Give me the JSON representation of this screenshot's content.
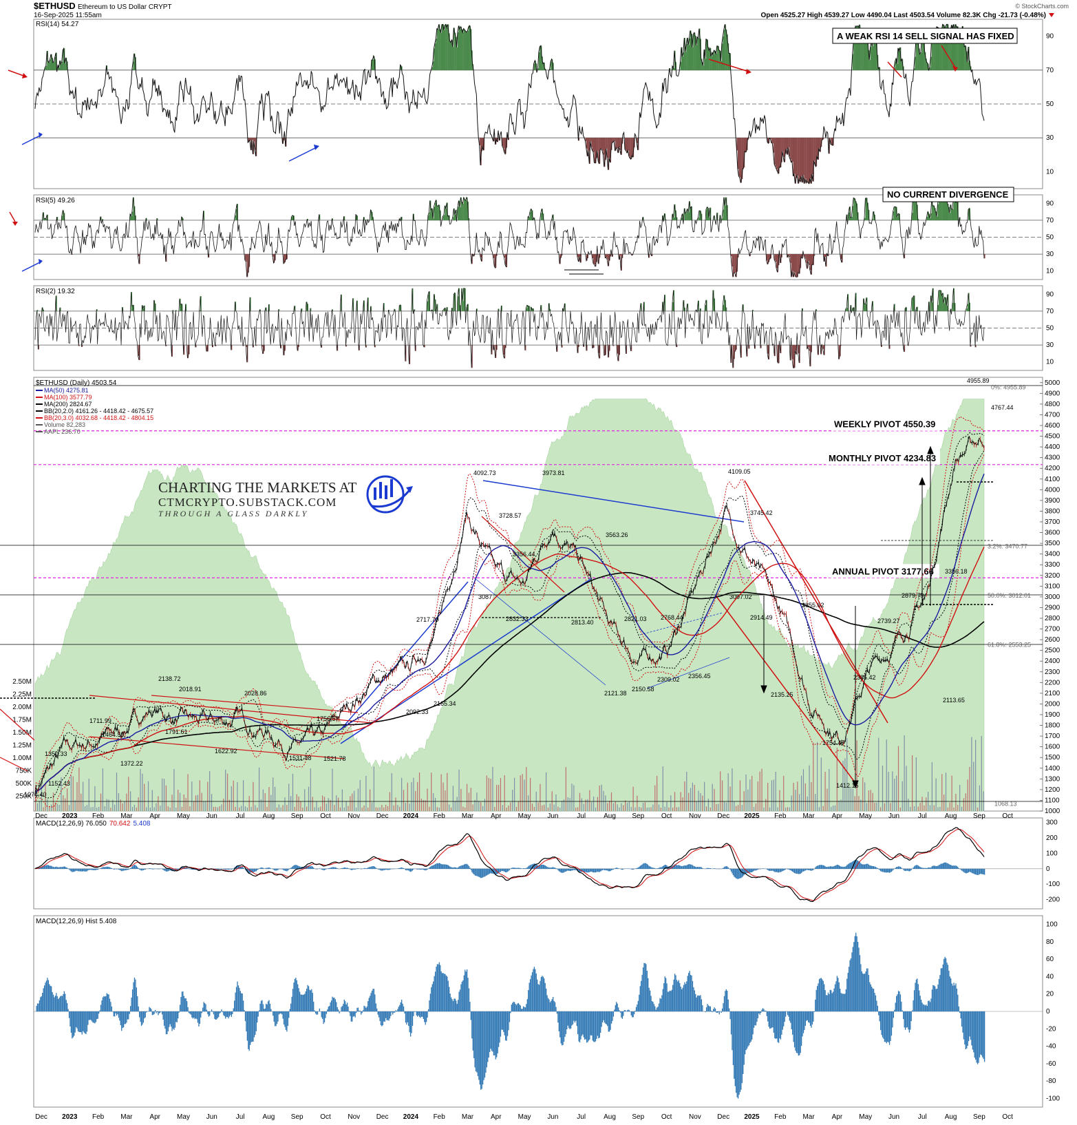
{
  "header": {
    "symbol": "$ETHUSD",
    "description": "Ethereum to US Dollar  CRYPT",
    "datetime": "16-Sep-2025 11:55am",
    "quote": "Open 4525.27  High 4539.27  Low 4490.04  Last 4503.54  Volume 82.3K  Chg -21.73 (-0.48%)",
    "credit": "© StockCharts.com"
  },
  "panels": {
    "rsi14": {
      "label": "RSI(14) 54.27",
      "annotation": "A WEAK RSI 14 SELL SIGNAL HAS FIXED",
      "levels": [
        90,
        70,
        50,
        30,
        10
      ]
    },
    "rsi5": {
      "label": "RSI(5) 49.26",
      "annotation": "NO CURRENT DIVERGENCE",
      "levels": [
        90,
        70,
        50,
        30,
        10
      ]
    },
    "rsi2": {
      "label": "RSI(2) 19.32",
      "levels": [
        90,
        70,
        50,
        30,
        10
      ]
    },
    "price": {
      "label": "$ETHUSD (Daily) 4503.54",
      "legend": [
        {
          "text": "MA(50) 4275.81",
          "color": "#1a1aa0"
        },
        {
          "text": "MA(100) 3577.79",
          "color": "#d01010"
        },
        {
          "text": "MA(200) 2824.67",
          "color": "#000000"
        },
        {
          "text": "BB(20,2.0) 4161.26 - 4418.42 - 4675.57",
          "color": "#000000"
        },
        {
          "text": "BB(20,3.0) 4032.68 - 4418.42 - 4804.15",
          "color": "#d01010"
        },
        {
          "text": "Volume 82,283",
          "color": "#555555"
        },
        {
          "text": "AAPL 236.70",
          "color": "#555555"
        }
      ],
      "axis_right": [
        "5000",
        "4900",
        "4800",
        "4700",
        "4600",
        "4500",
        "4400",
        "4300",
        "4200",
        "4100",
        "4000",
        "3900",
        "3800",
        "3700",
        "3600",
        "3500",
        "3400",
        "3300",
        "3200",
        "3100",
        "3000",
        "2900",
        "2800",
        "2700",
        "2600",
        "2500",
        "2400",
        "2300",
        "2200",
        "2100",
        "2000",
        "1900",
        "1800",
        "1700",
        "1600",
        "1500",
        "1400",
        "1300",
        "1200",
        "1100",
        "1000"
      ],
      "axis_left_volume": [
        "2.50M",
        "2.25M",
        "2.00M",
        "1.75M",
        "1.50M",
        "1.25M",
        "1.00M",
        "750K",
        "500K",
        "250K"
      ],
      "pivots": [
        {
          "label": "WEEKLY PIVOT 4550.39",
          "value": 4550.39
        },
        {
          "label": "MONTHLY PIVOT 4234.83",
          "value": 4234.83
        },
        {
          "label": "ANNUAL PIVOT 3177.66",
          "value": 3177.66
        }
      ],
      "fib_labels": [
        "3.2%: 3470.77",
        "50.0%: 3012.01",
        "61.8%: 2553.25",
        "0%: 4955.89",
        "1068.13"
      ],
      "peak_labels": [
        "4955.89",
        "4767.44",
        "4109.05",
        "3745.42",
        "4092.73",
        "3973.81",
        "3728.57",
        "3563.26",
        "3356.44",
        "3097.02",
        "3087",
        "2914.49",
        "2855.62",
        "2879.79",
        "2739.27",
        "2832.33",
        "2813.40",
        "2821.03",
        "2768.44",
        "2717.70",
        "2385.42",
        "2356.45",
        "2309.02",
        "2150.58",
        "2121.38",
        "2113.65",
        "2135.25",
        "2092.33",
        "2165.34",
        "2138.72",
        "2028.86",
        "2018.91",
        "1791.61",
        "1756.57",
        "1754.47",
        "1711.99",
        "1622.92",
        "1531.48",
        "1521.78",
        "1464.59",
        "1412.16",
        "1372.22",
        "1350.33",
        "1152.43",
        "1074.40",
        "3356.18"
      ],
      "watermark": {
        "line1": "CHARTING THE MARKETS AT",
        "line2": "CTMCRYPTO.SUBSTACK.COM",
        "line3": "THROUGH A GLASS DARKLY"
      }
    },
    "macd": {
      "label_prefix": "MACD(12,26,9) ",
      "v1": "76.050",
      "v2": "70.642",
      "v3": "5.408",
      "levels": [
        300,
        200,
        100,
        0,
        -100,
        -200
      ]
    },
    "hist": {
      "label": "MACD(12,26,9) Hist 5.408",
      "levels": [
        100,
        80,
        60,
        40,
        20,
        0,
        -20,
        -40,
        -60,
        -80,
        -100
      ]
    }
  },
  "x_axis": [
    "Dec",
    "2023",
    "Feb",
    "Mar",
    "Apr",
    "May",
    "Jun",
    "Jul",
    "Aug",
    "Sep",
    "Oct",
    "Nov",
    "Dec",
    "2024",
    "Feb",
    "Mar",
    "Apr",
    "May",
    "Jun",
    "Jul",
    "Aug",
    "Sep",
    "Oct",
    "Nov",
    "Dec",
    "2025",
    "Feb",
    "Mar",
    "Apr",
    "May",
    "Jun",
    "Jul",
    "Aug",
    "Sep",
    "Oct"
  ],
  "chart_data": {
    "type": "line",
    "x_ticks": [
      "Dec",
      "2023",
      "Feb",
      "Mar",
      "Apr",
      "May",
      "Jun",
      "Jul",
      "Aug",
      "Sep",
      "Oct",
      "Nov",
      "Dec",
      "2024",
      "Feb",
      "Mar",
      "Apr",
      "May",
      "Jun",
      "Jul",
      "Aug",
      "Sep",
      "Oct",
      "Nov",
      "Dec",
      "2025",
      "Feb",
      "Mar",
      "Apr",
      "May",
      "Jun",
      "Jul",
      "Aug",
      "Sep",
      "Oct"
    ],
    "price_series": {
      "name": "$ETHUSD",
      "x": [
        "2022-12",
        "2023-01",
        "2023-02",
        "2023-03",
        "2023-04",
        "2023-05",
        "2023-06",
        "2023-07",
        "2023-08",
        "2023-09",
        "2023-10",
        "2023-11",
        "2023-12",
        "2024-01",
        "2024-02",
        "2024-03",
        "2024-04",
        "2024-05",
        "2024-06",
        "2024-07",
        "2024-08",
        "2024-09",
        "2024-10",
        "2024-11",
        "2024-12",
        "2025-01",
        "2025-02",
        "2025-03",
        "2025-04",
        "2025-05",
        "2025-06",
        "2025-07",
        "2025-08",
        "2025-09"
      ],
      "values": [
        1200,
        1550,
        1650,
        1750,
        1950,
        1850,
        1800,
        1870,
        1750,
        1600,
        1650,
        2000,
        2250,
        2300,
        2700,
        3800,
        3200,
        3100,
        3700,
        3300,
        2700,
        2400,
        2500,
        3100,
        3800,
        3300,
        2800,
        2000,
        1700,
        2300,
        2600,
        3000,
        4300,
        4500
      ]
    },
    "ylim": [
      1000,
      5000
    ]
  }
}
